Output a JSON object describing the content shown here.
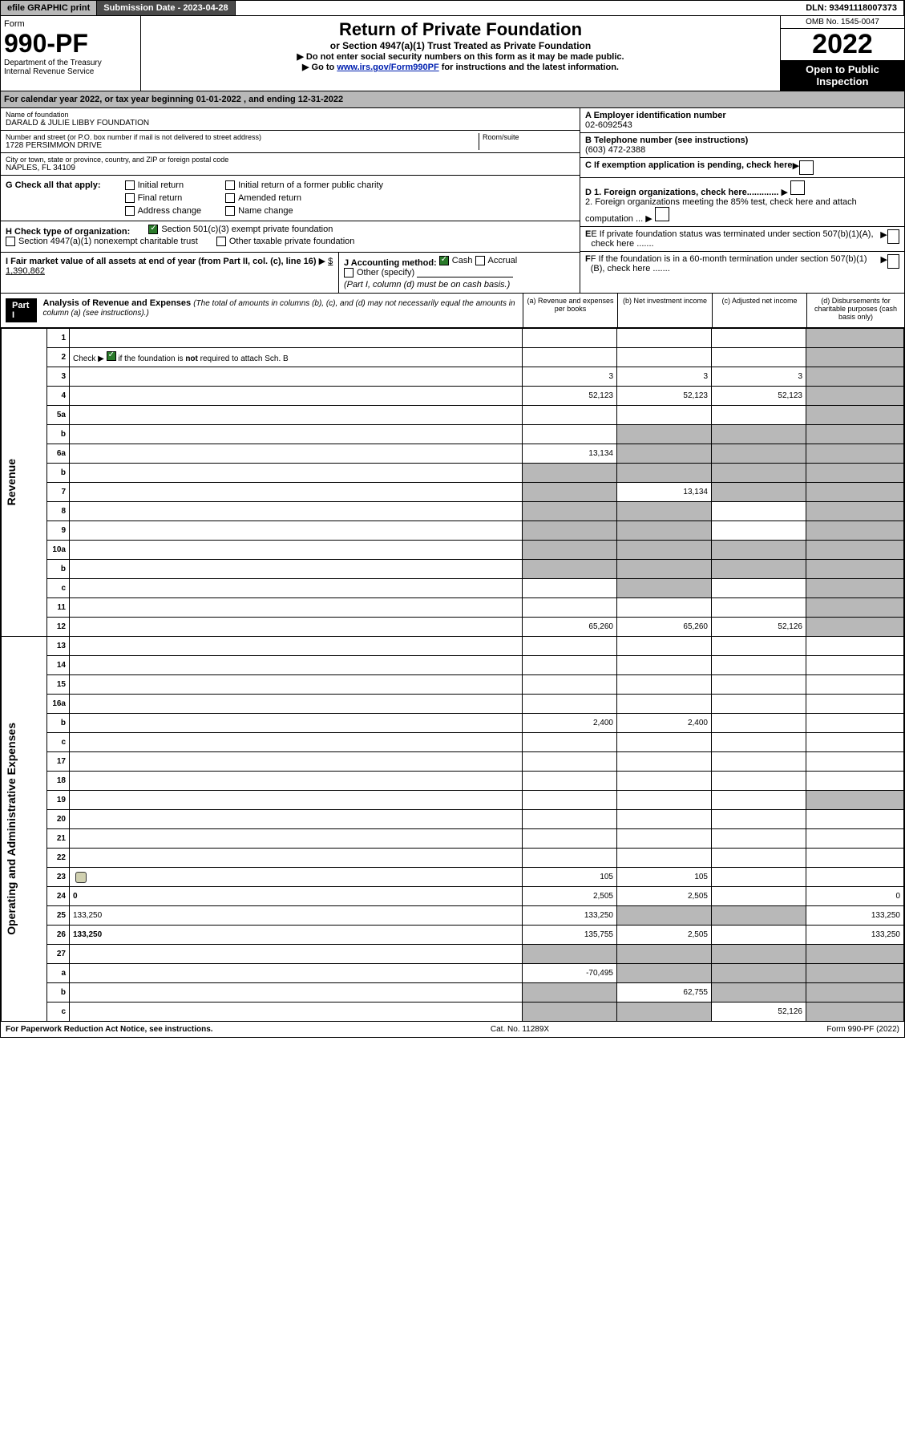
{
  "top": {
    "efile": "efile GRAPHIC print",
    "subdate_label": "Submission Date - 2023-04-28",
    "dln": "DLN: 93491118007373"
  },
  "header": {
    "form_label": "Form",
    "form_num": "990-PF",
    "dept1": "Department of the Treasury",
    "dept2": "Internal Revenue Service",
    "title": "Return of Private Foundation",
    "subtitle": "or Section 4947(a)(1) Trust Treated as Private Foundation",
    "inst1": "▶ Do not enter social security numbers on this form as it may be made public.",
    "inst2_pre": "▶ Go to ",
    "inst2_link": "www.irs.gov/Form990PF",
    "inst2_post": " for instructions and the latest information.",
    "omb": "OMB No. 1545-0047",
    "year": "2022",
    "open": "Open to Public Inspection"
  },
  "calyear": "For calendar year 2022, or tax year beginning 01-01-2022            , and ending 12-31-2022",
  "ident": {
    "name_label": "Name of foundation",
    "name": "DARALD & JULIE LIBBY FOUNDATION",
    "addr_label": "Number and street (or P.O. box number if mail is not delivered to street address)",
    "addr": "1728 PERSIMMON DRIVE",
    "room_label": "Room/suite",
    "city_label": "City or town, state or province, country, and ZIP or foreign postal code",
    "city": "NAPLES, FL  34109",
    "a_label": "A Employer identification number",
    "a_val": "02-6092543",
    "b_label": "B Telephone number (see instructions)",
    "b_val": "(603) 472-2388",
    "c_label": "C If exemption application is pending, check here",
    "d1": "D 1. Foreign organizations, check here.............",
    "d2": "2. Foreign organizations meeting the 85% test, check here and attach computation ...",
    "e": "E If private foundation status was terminated under section 507(b)(1)(A), check here .......",
    "f": "F If the foundation is in a 60-month termination under section 507(b)(1)(B), check here .......",
    "g_label": "G Check all that apply:",
    "g_opts": [
      "Initial return",
      "Final return",
      "Address change",
      "Initial return of a former public charity",
      "Amended return",
      "Name change"
    ],
    "h_label": "H Check type of organization:",
    "h_opt1": "Section 501(c)(3) exempt private foundation",
    "h_opt2": "Section 4947(a)(1) nonexempt charitable trust",
    "h_opt3": "Other taxable private foundation",
    "i_label": "I Fair market value of all assets at end of year (from Part II, col. (c), line 16)",
    "i_val": "$  1,390,862",
    "j_label": "J Accounting method:",
    "j_opts": [
      "Cash",
      "Accrual",
      "Other (specify)"
    ],
    "j_note": "(Part I, column (d) must be on cash basis.)"
  },
  "part1": {
    "hdr": "Part I",
    "title": "Analysis of Revenue and Expenses",
    "title_note": "(The total of amounts in columns (b), (c), and (d) may not necessarily equal the amounts in column (a) (see instructions).)",
    "cols": {
      "a": "(a) Revenue and expenses per books",
      "b": "(b) Net investment income",
      "c": "(c) Adjusted net income",
      "d": "(d) Disbursements for charitable purposes (cash basis only)"
    }
  },
  "side_labels": {
    "rev": "Revenue",
    "exp": "Operating and Administrative Expenses"
  },
  "rows": [
    {
      "n": "1",
      "d": "",
      "a": "",
      "b": "",
      "c": "",
      "dg": true
    },
    {
      "n": "2",
      "d": "",
      "a": "",
      "b": "",
      "c": "",
      "dg": true,
      "chk": true
    },
    {
      "n": "3",
      "d": "",
      "a": "3",
      "b": "3",
      "c": "3",
      "dg": true
    },
    {
      "n": "4",
      "d": "",
      "a": "52,123",
      "b": "52,123",
      "c": "52,123",
      "dg": true
    },
    {
      "n": "5a",
      "d": "",
      "a": "",
      "b": "",
      "c": "",
      "dg": true
    },
    {
      "n": "b",
      "d": "",
      "a": "",
      "b": "",
      "c": "",
      "dg": true,
      "bg": true,
      "cg": true
    },
    {
      "n": "6a",
      "d": "",
      "a": "13,134",
      "b": "",
      "c": "",
      "dg": true,
      "bg": true,
      "cg": true
    },
    {
      "n": "b",
      "d": "",
      "a": "",
      "b": "",
      "c": "",
      "dg": true,
      "bg": true,
      "cg": true,
      "ag": true
    },
    {
      "n": "7",
      "d": "",
      "a": "",
      "b": "13,134",
      "c": "",
      "dg": true,
      "ag": true,
      "cg": true
    },
    {
      "n": "8",
      "d": "",
      "a": "",
      "b": "",
      "c": "",
      "dg": true,
      "ag": true,
      "bg": true
    },
    {
      "n": "9",
      "d": "",
      "a": "",
      "b": "",
      "c": "",
      "dg": true,
      "ag": true,
      "bg": true
    },
    {
      "n": "10a",
      "d": "",
      "a": "",
      "b": "",
      "c": "",
      "dg": true,
      "ag": true,
      "bg": true,
      "cg": true
    },
    {
      "n": "b",
      "d": "",
      "a": "",
      "b": "",
      "c": "",
      "dg": true,
      "ag": true,
      "bg": true,
      "cg": true
    },
    {
      "n": "c",
      "d": "",
      "a": "",
      "b": "",
      "c": "",
      "dg": true,
      "bg": true
    },
    {
      "n": "11",
      "d": "",
      "a": "",
      "b": "",
      "c": "",
      "dg": true
    },
    {
      "n": "12",
      "d": "",
      "a": "65,260",
      "b": "65,260",
      "c": "52,126",
      "dg": true,
      "bold": true
    }
  ],
  "exp_rows": [
    {
      "n": "13",
      "d": "",
      "a": "",
      "b": "",
      "c": ""
    },
    {
      "n": "14",
      "d": "",
      "a": "",
      "b": "",
      "c": ""
    },
    {
      "n": "15",
      "d": "",
      "a": "",
      "b": "",
      "c": ""
    },
    {
      "n": "16a",
      "d": "",
      "a": "",
      "b": "",
      "c": ""
    },
    {
      "n": "b",
      "d": "",
      "a": "2,400",
      "b": "2,400",
      "c": ""
    },
    {
      "n": "c",
      "d": "",
      "a": "",
      "b": "",
      "c": ""
    },
    {
      "n": "17",
      "d": "",
      "a": "",
      "b": "",
      "c": ""
    },
    {
      "n": "18",
      "d": "",
      "a": "",
      "b": "",
      "c": ""
    },
    {
      "n": "19",
      "d": "",
      "a": "",
      "b": "",
      "c": "",
      "dg": true
    },
    {
      "n": "20",
      "d": "",
      "a": "",
      "b": "",
      "c": ""
    },
    {
      "n": "21",
      "d": "",
      "a": "",
      "b": "",
      "c": ""
    },
    {
      "n": "22",
      "d": "",
      "a": "",
      "b": "",
      "c": ""
    },
    {
      "n": "23",
      "d": "",
      "a": "105",
      "b": "105",
      "c": "",
      "icon": true
    },
    {
      "n": "24",
      "d": "0",
      "a": "2,505",
      "b": "2,505",
      "c": "",
      "bold": true
    },
    {
      "n": "25",
      "d": "133,250",
      "a": "133,250",
      "b": "",
      "c": "",
      "bg": true,
      "cg": true
    },
    {
      "n": "26",
      "d": "133,250",
      "a": "135,755",
      "b": "2,505",
      "c": "",
      "bold": true
    },
    {
      "n": "27",
      "d": "",
      "a": "",
      "b": "",
      "c": "",
      "ag": true,
      "bg": true,
      "cg": true,
      "dg": true
    },
    {
      "n": "a",
      "d": "",
      "a": "-70,495",
      "b": "",
      "c": "",
      "bold": true,
      "bg": true,
      "cg": true,
      "dg": true
    },
    {
      "n": "b",
      "d": "",
      "a": "",
      "b": "62,755",
      "c": "",
      "bold": true,
      "ag": true,
      "cg": true,
      "dg": true
    },
    {
      "n": "c",
      "d": "",
      "a": "",
      "b": "",
      "c": "52,126",
      "bold": true,
      "ag": true,
      "bg": true,
      "dg": true
    }
  ],
  "footer": {
    "left": "For Paperwork Reduction Act Notice, see instructions.",
    "mid": "Cat. No. 11289X",
    "right": "Form 990-PF (2022)"
  }
}
